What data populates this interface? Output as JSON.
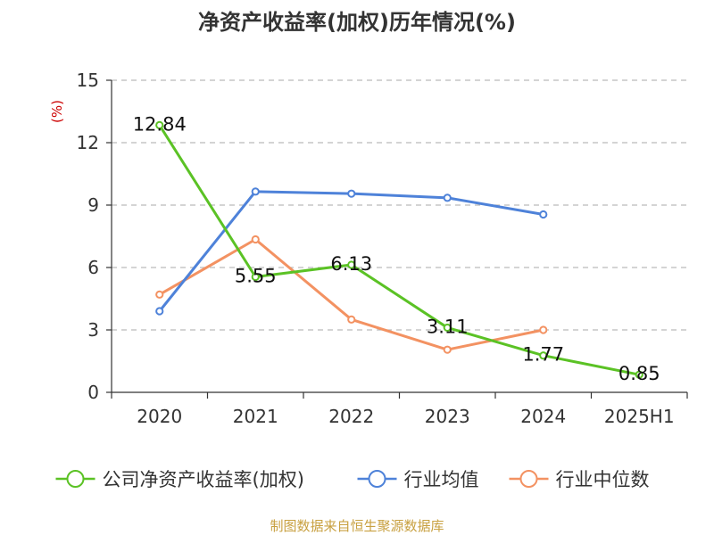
{
  "chart_data": {
    "type": "line",
    "title": "净资产收益率(加权)历年情况(%)",
    "ylabel": "(%)",
    "xlabel": "",
    "categories": [
      "2020",
      "2021",
      "2022",
      "2023",
      "2024",
      "2025H1"
    ],
    "ylim": [
      0,
      15
    ],
    "yticks": [
      0,
      3,
      6,
      9,
      12,
      15
    ],
    "grid": "horizontal-dashed",
    "legend_position": "bottom",
    "series": [
      {
        "name": "公司净资产收益率(加权)",
        "color": "#5bc225",
        "values": [
          12.84,
          5.55,
          6.13,
          3.11,
          1.77,
          0.85
        ],
        "labels": [
          "12.84",
          "5.55",
          "6.13",
          "3.11",
          "1.77",
          "0.85"
        ]
      },
      {
        "name": "行业均值",
        "color": "#4e82d9",
        "values": [
          3.9,
          9.65,
          9.55,
          9.35,
          8.55,
          null
        ]
      },
      {
        "name": "行业中位数",
        "color": "#f39262",
        "values": [
          4.7,
          7.35,
          3.5,
          2.05,
          3.0,
          null
        ]
      }
    ]
  },
  "footer": {
    "source": "制图数据来自恒生聚源数据库"
  }
}
